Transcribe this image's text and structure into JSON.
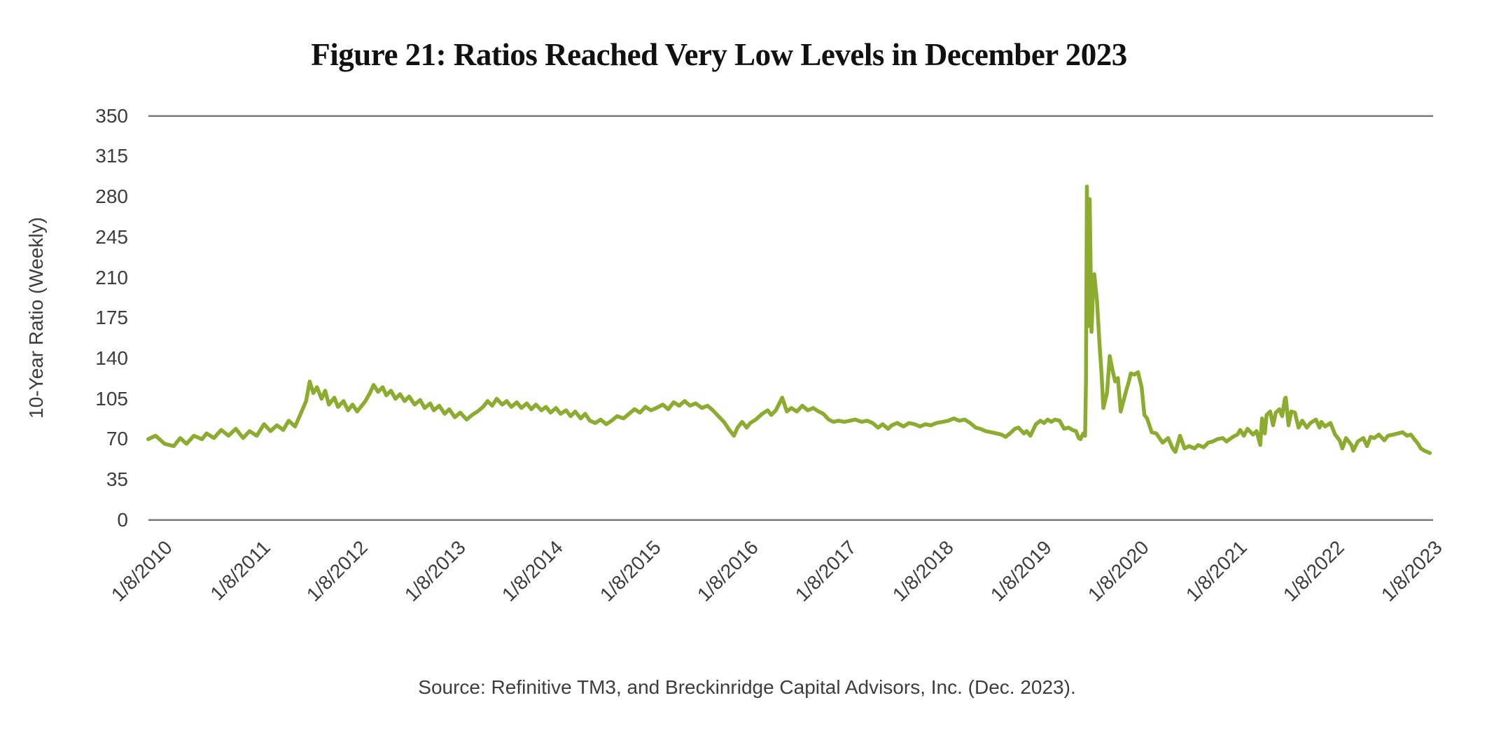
{
  "title": "Figure 21: Ratios Reached Very Low Levels in December 2023",
  "source_note": "Source: Refinitive TM3, and Breckinridge Capital Advisors, Inc. (Dec. 2023).",
  "colors": {
    "series_green": "#8BAC2F",
    "axis_gray": "#7b7b7b",
    "label_gray": "#3d3d3d",
    "title_black": "#111111"
  },
  "chart_data": {
    "type": "line",
    "title": "Figure 21: Ratios Reached Very Low Levels in December 2023",
    "xlabel": "",
    "ylabel": "10-Year Ratio (Weekly)",
    "ylim": [
      0,
      350
    ],
    "yticks": [
      0,
      35,
      70,
      105,
      140,
      175,
      210,
      245,
      280,
      315,
      350
    ],
    "xtick_labels": [
      "1/8/2010",
      "1/8/2011",
      "1/8/2012",
      "1/8/2013",
      "1/8/2014",
      "1/8/2015",
      "1/8/2016",
      "1/8/2017",
      "1/8/2018",
      "1/8/2019",
      "1/8/2020",
      "1/8/2021",
      "1/8/2022",
      "1/8/2023"
    ],
    "grid": "horizontal rule at y=350 (top) and y=0 (bottom) only",
    "legend_position": "none",
    "series": [
      {
        "name": "10-Year Ratio (Weekly)",
        "color": "#8BAC2F",
        "points": [
          [
            2009.9,
            70
          ],
          [
            2009.98,
            73
          ],
          [
            2010.08,
            66
          ],
          [
            2010.18,
            64
          ],
          [
            2010.25,
            71
          ],
          [
            2010.32,
            66
          ],
          [
            2010.4,
            73
          ],
          [
            2010.49,
            70
          ],
          [
            2010.54,
            75
          ],
          [
            2010.62,
            71
          ],
          [
            2010.7,
            78
          ],
          [
            2010.78,
            73
          ],
          [
            2010.86,
            79
          ],
          [
            2010.94,
            71
          ],
          [
            2011.01,
            77
          ],
          [
            2011.09,
            73
          ],
          [
            2011.17,
            83
          ],
          [
            2011.24,
            77
          ],
          [
            2011.31,
            82
          ],
          [
            2011.38,
            78
          ],
          [
            2011.44,
            86
          ],
          [
            2011.51,
            81
          ],
          [
            2011.57,
            92
          ],
          [
            2011.63,
            103
          ],
          [
            2011.67,
            120
          ],
          [
            2011.71,
            110
          ],
          [
            2011.75,
            115
          ],
          [
            2011.8,
            105
          ],
          [
            2011.84,
            112
          ],
          [
            2011.88,
            100
          ],
          [
            2011.94,
            106
          ],
          [
            2011.98,
            98
          ],
          [
            2012.04,
            103
          ],
          [
            2012.09,
            95
          ],
          [
            2012.14,
            100
          ],
          [
            2012.19,
            94
          ],
          [
            2012.24,
            99
          ],
          [
            2012.28,
            103
          ],
          [
            2012.33,
            110
          ],
          [
            2012.37,
            117
          ],
          [
            2012.42,
            111
          ],
          [
            2012.47,
            115
          ],
          [
            2012.51,
            108
          ],
          [
            2012.56,
            112
          ],
          [
            2012.61,
            105
          ],
          [
            2012.66,
            109
          ],
          [
            2012.71,
            103
          ],
          [
            2012.76,
            107
          ],
          [
            2012.82,
            100
          ],
          [
            2012.88,
            104
          ],
          [
            2012.93,
            97
          ],
          [
            2012.99,
            101
          ],
          [
            2013.03,
            95
          ],
          [
            2013.09,
            99
          ],
          [
            2013.15,
            92
          ],
          [
            2013.2,
            96
          ],
          [
            2013.26,
            89
          ],
          [
            2013.32,
            93
          ],
          [
            2013.39,
            87
          ],
          [
            2013.45,
            91
          ],
          [
            2013.51,
            94
          ],
          [
            2013.57,
            98
          ],
          [
            2013.62,
            103
          ],
          [
            2013.67,
            99
          ],
          [
            2013.72,
            105
          ],
          [
            2013.78,
            100
          ],
          [
            2013.83,
            103
          ],
          [
            2013.88,
            98
          ],
          [
            2013.94,
            102
          ],
          [
            2013.99,
            97
          ],
          [
            2014.05,
            101
          ],
          [
            2014.1,
            96
          ],
          [
            2014.15,
            100
          ],
          [
            2014.21,
            95
          ],
          [
            2014.26,
            98
          ],
          [
            2014.31,
            93
          ],
          [
            2014.37,
            97
          ],
          [
            2014.42,
            92
          ],
          [
            2014.48,
            95
          ],
          [
            2014.53,
            90
          ],
          [
            2014.58,
            94
          ],
          [
            2014.64,
            88
          ],
          [
            2014.69,
            92
          ],
          [
            2014.74,
            86
          ],
          [
            2014.8,
            84
          ],
          [
            2014.86,
            87
          ],
          [
            2014.92,
            83
          ],
          [
            2014.98,
            86
          ],
          [
            2015.04,
            90
          ],
          [
            2015.11,
            88
          ],
          [
            2015.17,
            92
          ],
          [
            2015.23,
            96
          ],
          [
            2015.29,
            93
          ],
          [
            2015.35,
            98
          ],
          [
            2015.41,
            95
          ],
          [
            2015.47,
            97
          ],
          [
            2015.54,
            100
          ],
          [
            2015.6,
            96
          ],
          [
            2015.66,
            102
          ],
          [
            2015.72,
            99
          ],
          [
            2015.78,
            103
          ],
          [
            2015.84,
            99
          ],
          [
            2015.9,
            101
          ],
          [
            2015.97,
            97
          ],
          [
            2016.03,
            99
          ],
          [
            2016.09,
            95
          ],
          [
            2016.15,
            90
          ],
          [
            2016.21,
            85
          ],
          [
            2016.27,
            78
          ],
          [
            2016.32,
            73
          ],
          [
            2016.36,
            80
          ],
          [
            2016.41,
            85
          ],
          [
            2016.46,
            80
          ],
          [
            2016.5,
            84
          ],
          [
            2016.56,
            87
          ],
          [
            2016.63,
            92
          ],
          [
            2016.69,
            95
          ],
          [
            2016.73,
            91
          ],
          [
            2016.78,
            95
          ],
          [
            2016.85,
            106
          ],
          [
            2016.9,
            94
          ],
          [
            2016.95,
            97
          ],
          [
            2017.01,
            94
          ],
          [
            2017.07,
            99
          ],
          [
            2017.13,
            95
          ],
          [
            2017.19,
            97
          ],
          [
            2017.25,
            94
          ],
          [
            2017.3,
            92
          ],
          [
            2017.36,
            87
          ],
          [
            2017.41,
            85
          ],
          [
            2017.47,
            86
          ],
          [
            2017.53,
            85
          ],
          [
            2017.59,
            86
          ],
          [
            2017.65,
            87
          ],
          [
            2017.72,
            85
          ],
          [
            2017.78,
            86
          ],
          [
            2017.84,
            84
          ],
          [
            2017.9,
            80
          ],
          [
            2017.95,
            83
          ],
          [
            2018.01,
            79
          ],
          [
            2018.05,
            82
          ],
          [
            2018.11,
            84
          ],
          [
            2018.18,
            81
          ],
          [
            2018.24,
            84
          ],
          [
            2018.3,
            83
          ],
          [
            2018.36,
            81
          ],
          [
            2018.42,
            83
          ],
          [
            2018.48,
            82
          ],
          [
            2018.54,
            84
          ],
          [
            2018.61,
            85
          ],
          [
            2018.67,
            86
          ],
          [
            2018.73,
            88
          ],
          [
            2018.79,
            86
          ],
          [
            2018.85,
            87
          ],
          [
            2018.91,
            84
          ],
          [
            2018.97,
            80
          ],
          [
            2019.02,
            79
          ],
          [
            2019.08,
            77
          ],
          [
            2019.14,
            76
          ],
          [
            2019.2,
            75
          ],
          [
            2019.25,
            74
          ],
          [
            2019.3,
            72
          ],
          [
            2019.36,
            76
          ],
          [
            2019.4,
            79
          ],
          [
            2019.44,
            80
          ],
          [
            2019.5,
            75
          ],
          [
            2019.53,
            77
          ],
          [
            2019.57,
            73
          ],
          [
            2019.63,
            83
          ],
          [
            2019.68,
            86
          ],
          [
            2019.72,
            84
          ],
          [
            2019.76,
            87
          ],
          [
            2019.8,
            85
          ],
          [
            2019.84,
            87
          ],
          [
            2019.89,
            86
          ],
          [
            2019.94,
            79
          ],
          [
            2019.99,
            80
          ],
          [
            2020.03,
            78
          ],
          [
            2020.07,
            77
          ],
          [
            2020.1,
            71
          ],
          [
            2020.12,
            70
          ],
          [
            2020.15,
            75
          ],
          [
            2020.17,
            73
          ],
          [
            2020.18,
            120
          ],
          [
            2020.19,
            289
          ],
          [
            2020.21,
            168
          ],
          [
            2020.22,
            278
          ],
          [
            2020.24,
            163
          ],
          [
            2020.26,
            205
          ],
          [
            2020.27,
            213
          ],
          [
            2020.3,
            190
          ],
          [
            2020.33,
            150
          ],
          [
            2020.35,
            127
          ],
          [
            2020.37,
            97
          ],
          [
            2020.41,
            110
          ],
          [
            2020.44,
            142
          ],
          [
            2020.47,
            130
          ],
          [
            2020.5,
            120
          ],
          [
            2020.53,
            123
          ],
          [
            2020.56,
            94
          ],
          [
            2020.59,
            103
          ],
          [
            2020.62,
            112
          ],
          [
            2020.65,
            120
          ],
          [
            2020.67,
            127
          ],
          [
            2020.71,
            126
          ],
          [
            2020.75,
            128
          ],
          [
            2020.79,
            115
          ],
          [
            2020.82,
            91
          ],
          [
            2020.85,
            88
          ],
          [
            2020.9,
            76
          ],
          [
            2020.95,
            75
          ],
          [
            2021.02,
            67
          ],
          [
            2021.08,
            71
          ],
          [
            2021.13,
            62
          ],
          [
            2021.16,
            59
          ],
          [
            2021.21,
            73
          ],
          [
            2021.26,
            62
          ],
          [
            2021.31,
            64
          ],
          [
            2021.37,
            62
          ],
          [
            2021.41,
            65
          ],
          [
            2021.47,
            63
          ],
          [
            2021.52,
            67
          ],
          [
            2021.57,
            68
          ],
          [
            2021.62,
            70
          ],
          [
            2021.68,
            71
          ],
          [
            2021.72,
            68
          ],
          [
            2021.79,
            72
          ],
          [
            2021.84,
            74
          ],
          [
            2021.87,
            78
          ],
          [
            2021.91,
            73
          ],
          [
            2021.95,
            79
          ],
          [
            2022.01,
            74
          ],
          [
            2022.05,
            77
          ],
          [
            2022.09,
            65
          ],
          [
            2022.11,
            88
          ],
          [
            2022.14,
            75
          ],
          [
            2022.16,
            91
          ],
          [
            2022.2,
            94
          ],
          [
            2022.23,
            82
          ],
          [
            2022.26,
            93
          ],
          [
            2022.3,
            96
          ],
          [
            2022.33,
            90
          ],
          [
            2022.36,
            105
          ],
          [
            2022.37,
            106
          ],
          [
            2022.4,
            82
          ],
          [
            2022.43,
            94
          ],
          [
            2022.47,
            93
          ],
          [
            2022.51,
            80
          ],
          [
            2022.55,
            86
          ],
          [
            2022.6,
            80
          ],
          [
            2022.64,
            84
          ],
          [
            2022.7,
            87
          ],
          [
            2022.74,
            80
          ],
          [
            2022.76,
            85
          ],
          [
            2022.8,
            81
          ],
          [
            2022.86,
            84
          ],
          [
            2022.91,
            74
          ],
          [
            2022.96,
            69
          ],
          [
            2022.99,
            62
          ],
          [
            2023.03,
            71
          ],
          [
            2023.09,
            65
          ],
          [
            2023.11,
            60
          ],
          [
            2023.16,
            68
          ],
          [
            2023.22,
            71
          ],
          [
            2023.26,
            64
          ],
          [
            2023.3,
            72
          ],
          [
            2023.34,
            71
          ],
          [
            2023.39,
            74
          ],
          [
            2023.45,
            69
          ],
          [
            2023.49,
            73
          ],
          [
            2023.55,
            74
          ],
          [
            2023.6,
            75
          ],
          [
            2023.65,
            76
          ],
          [
            2023.7,
            73
          ],
          [
            2023.74,
            74
          ],
          [
            2023.78,
            70
          ],
          [
            2023.82,
            66
          ],
          [
            2023.85,
            62
          ],
          [
            2023.89,
            60
          ],
          [
            2023.95,
            58
          ]
        ]
      }
    ]
  }
}
